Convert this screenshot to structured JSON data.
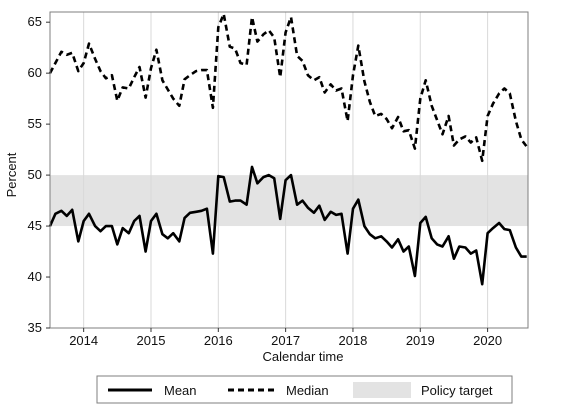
{
  "chart_data": {
    "type": "line",
    "xlabel": "Calendar time",
    "ylabel": "Percent",
    "ylim": [
      35,
      66
    ],
    "xlim": [
      2013.5,
      2020.6
    ],
    "yticks": [
      35,
      40,
      45,
      50,
      55,
      60,
      65
    ],
    "xticks": [
      2014,
      2015,
      2016,
      2017,
      2018,
      2019,
      2020
    ],
    "vertical_gridlines": true,
    "band": {
      "name": "Policy target",
      "lower": 45,
      "upper": 50,
      "color": "#e3e3e3"
    },
    "legend_position": "bottom",
    "series": [
      {
        "name": "Mean",
        "style": "solid",
        "x": [
          2013.5,
          2013.58,
          2013.67,
          2013.75,
          2013.83,
          2013.92,
          2014.0,
          2014.08,
          2014.17,
          2014.25,
          2014.33,
          2014.42,
          2014.5,
          2014.58,
          2014.67,
          2014.75,
          2014.83,
          2014.92,
          2015.0,
          2015.08,
          2015.17,
          2015.25,
          2015.33,
          2015.42,
          2015.5,
          2015.58,
          2015.67,
          2015.75,
          2015.83,
          2015.92,
          2016.0,
          2016.08,
          2016.17,
          2016.25,
          2016.33,
          2016.42,
          2016.5,
          2016.58,
          2016.67,
          2016.75,
          2016.83,
          2016.92,
          2017.0,
          2017.08,
          2017.17,
          2017.25,
          2017.33,
          2017.42,
          2017.5,
          2017.58,
          2017.67,
          2017.75,
          2017.83,
          2017.92,
          2018.0,
          2018.08,
          2018.17,
          2018.25,
          2018.33,
          2018.42,
          2018.5,
          2018.58,
          2018.67,
          2018.75,
          2018.83,
          2018.92,
          2019.0,
          2019.08,
          2019.17,
          2019.25,
          2019.33,
          2019.42,
          2019.5,
          2019.58,
          2019.67,
          2019.75,
          2019.83,
          2019.92,
          2020.0,
          2020.08,
          2020.17,
          2020.25,
          2020.33,
          2020.42,
          2020.5,
          2020.58
        ],
        "values": [
          45.0,
          46.2,
          46.5,
          46.0,
          46.6,
          43.5,
          45.5,
          46.2,
          45.0,
          44.5,
          45.0,
          45.0,
          43.2,
          44.8,
          44.3,
          45.5,
          46.0,
          42.5,
          45.5,
          46.2,
          44.2,
          43.8,
          44.3,
          43.5,
          45.8,
          46.3,
          46.4,
          46.5,
          46.7,
          42.3,
          49.9,
          49.8,
          47.4,
          47.5,
          47.5,
          47.1,
          50.8,
          49.2,
          49.8,
          50.0,
          49.7,
          45.7,
          49.5,
          50.0,
          47.1,
          47.5,
          46.8,
          46.3,
          47.0,
          45.6,
          46.4,
          46.1,
          46.2,
          42.3,
          46.7,
          47.6,
          45.0,
          44.2,
          43.8,
          44.0,
          43.5,
          42.9,
          43.7,
          42.5,
          43.0,
          40.1,
          45.3,
          45.9,
          43.8,
          43.2,
          43.0,
          44.0,
          41.8,
          43.0,
          42.9,
          42.3,
          42.6,
          39.3,
          44.3,
          44.8,
          45.3,
          44.7,
          44.6,
          42.9,
          42.0,
          42.0
        ]
      },
      {
        "name": "Median",
        "style": "dashed",
        "x": [
          2013.5,
          2013.58,
          2013.67,
          2013.75,
          2013.83,
          2013.92,
          2014.0,
          2014.08,
          2014.17,
          2014.25,
          2014.33,
          2014.42,
          2014.5,
          2014.58,
          2014.67,
          2014.75,
          2014.83,
          2014.92,
          2015.0,
          2015.08,
          2015.17,
          2015.25,
          2015.33,
          2015.42,
          2015.5,
          2015.58,
          2015.67,
          2015.75,
          2015.83,
          2015.92,
          2016.0,
          2016.08,
          2016.17,
          2016.25,
          2016.33,
          2016.42,
          2016.5,
          2016.58,
          2016.67,
          2016.75,
          2016.83,
          2016.92,
          2017.0,
          2017.08,
          2017.17,
          2017.25,
          2017.33,
          2017.42,
          2017.5,
          2017.58,
          2017.67,
          2017.75,
          2017.83,
          2017.92,
          2018.0,
          2018.08,
          2018.17,
          2018.25,
          2018.33,
          2018.42,
          2018.5,
          2018.58,
          2018.67,
          2018.75,
          2018.83,
          2018.92,
          2019.0,
          2019.08,
          2019.17,
          2019.25,
          2019.33,
          2019.42,
          2019.5,
          2019.58,
          2019.67,
          2019.75,
          2019.83,
          2019.92,
          2020.0,
          2020.08,
          2020.17,
          2020.25,
          2020.33,
          2020.42,
          2020.5,
          2020.58
        ],
        "values": [
          60.0,
          61.0,
          62.1,
          61.8,
          62.0,
          60.2,
          61.0,
          62.9,
          61.4,
          60.2,
          59.5,
          59.8,
          57.3,
          58.6,
          58.5,
          59.6,
          60.6,
          57.6,
          60.5,
          62.3,
          59.3,
          58.4,
          57.5,
          56.8,
          59.4,
          59.8,
          60.2,
          60.3,
          60.3,
          56.6,
          64.5,
          65.8,
          62.6,
          62.4,
          61.0,
          60.8,
          65.5,
          63.1,
          63.8,
          64.2,
          63.5,
          59.6,
          64.0,
          65.5,
          61.7,
          61.2,
          59.8,
          59.3,
          59.6,
          58.1,
          58.9,
          58.3,
          58.5,
          55.3,
          59.8,
          62.7,
          59.2,
          57.2,
          55.8,
          56.0,
          55.5,
          54.6,
          55.7,
          54.3,
          54.4,
          52.6,
          57.5,
          59.3,
          56.8,
          55.4,
          54.0,
          55.8,
          52.9,
          53.5,
          53.8,
          53.2,
          53.7,
          51.4,
          55.8,
          57.0,
          58.0,
          58.5,
          58.0,
          55.3,
          53.5,
          52.8
        ]
      }
    ],
    "colors": {
      "line": "#000000",
      "band": "#e3e3e3",
      "grid": "#d9d9d9",
      "frame": "#7f7f7f"
    }
  }
}
